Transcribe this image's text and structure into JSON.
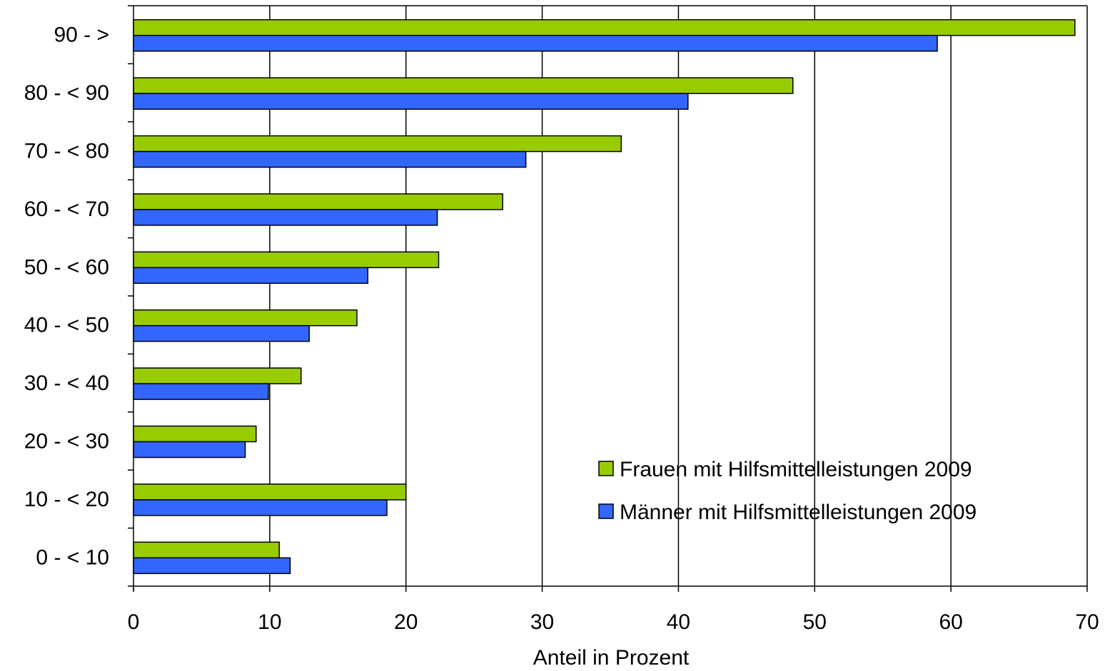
{
  "chart_data": {
    "type": "bar",
    "orientation": "horizontal",
    "title": "",
    "xlabel": "Anteil in Prozent",
    "ylabel": "",
    "xlim": [
      0,
      70
    ],
    "xticks": [
      0,
      10,
      20,
      30,
      40,
      50,
      60,
      70
    ],
    "grid": "vertical",
    "legend_position": "bottom-right",
    "categories": [
      "0 - < 10",
      "10 - < 20",
      "20 - < 30",
      "30 - < 40",
      "40 - < 50",
      "50 - < 60",
      "60 - < 70",
      "70 - < 80",
      "80 - < 90",
      "90 - >"
    ],
    "series": [
      {
        "name": "Frauen mit Hilfsmittelleistungen 2009",
        "color": "#99cc00",
        "values": [
          10.7,
          20.0,
          9.0,
          12.3,
          16.4,
          22.4,
          27.1,
          35.8,
          48.4,
          69.1
        ]
      },
      {
        "name": "Männer mit Hilfsmittelleistungen 2009",
        "color": "#3366ff",
        "values": [
          11.5,
          18.6,
          8.2,
          9.9,
          12.9,
          17.2,
          22.3,
          28.8,
          40.7,
          59.0
        ]
      }
    ]
  }
}
